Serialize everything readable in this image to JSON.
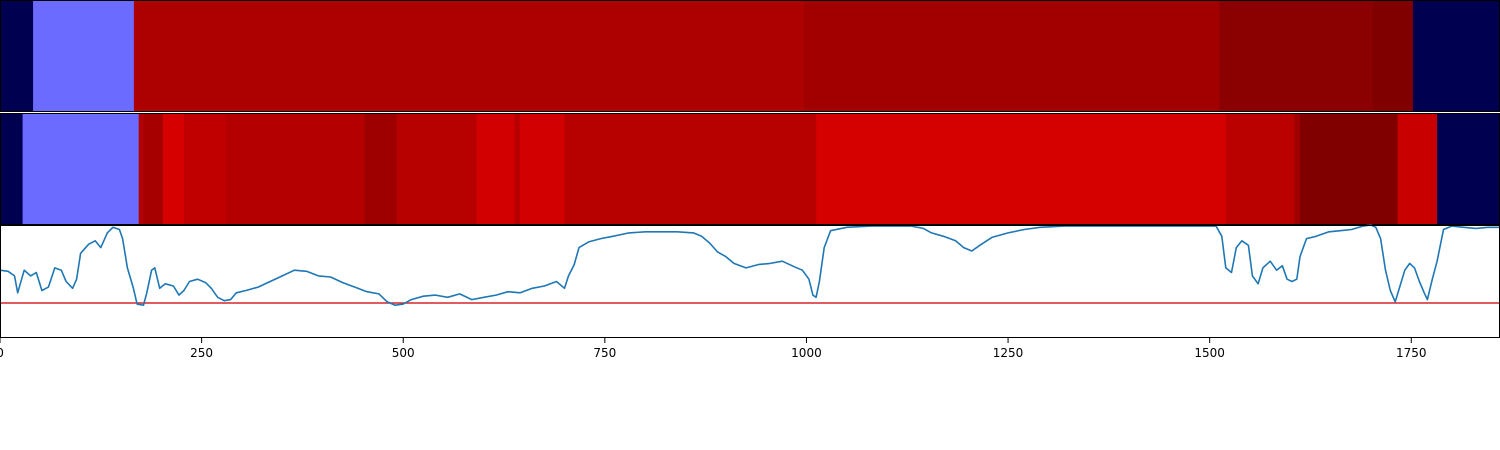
{
  "chart_data": [
    {
      "type": "heatmap",
      "xlim": [
        0,
        1860
      ],
      "segments": [
        {
          "start": 0,
          "end": 41,
          "color": "#000050"
        },
        {
          "start": 41,
          "end": 166,
          "color": "#6b6bff"
        },
        {
          "start": 166,
          "end": 997,
          "color": "#ad0000"
        },
        {
          "start": 997,
          "end": 1512,
          "color": "#a20000"
        },
        {
          "start": 1512,
          "end": 1702,
          "color": "#8b0000"
        },
        {
          "start": 1702,
          "end": 1752,
          "color": "#800000"
        },
        {
          "start": 1752,
          "end": 1860,
          "color": "#000050"
        }
      ]
    },
    {
      "type": "heatmap",
      "xlim": [
        0,
        1860
      ],
      "segments": [
        {
          "start": 0,
          "end": 28,
          "color": "#000050"
        },
        {
          "start": 28,
          "end": 172,
          "color": "#6b6bff"
        },
        {
          "start": 172,
          "end": 178,
          "color": "#b30000"
        },
        {
          "start": 178,
          "end": 202,
          "color": "#a60000"
        },
        {
          "start": 202,
          "end": 228,
          "color": "#d60000"
        },
        {
          "start": 228,
          "end": 280,
          "color": "#c00000"
        },
        {
          "start": 280,
          "end": 452,
          "color": "#b50000"
        },
        {
          "start": 452,
          "end": 492,
          "color": "#9e0000"
        },
        {
          "start": 492,
          "end": 591,
          "color": "#b70000"
        },
        {
          "start": 591,
          "end": 638,
          "color": "#d20000"
        },
        {
          "start": 638,
          "end": 645,
          "color": "#b70000"
        },
        {
          "start": 645,
          "end": 700,
          "color": "#d30000"
        },
        {
          "start": 700,
          "end": 1012,
          "color": "#b70000"
        },
        {
          "start": 1012,
          "end": 1520,
          "color": "#d50000"
        },
        {
          "start": 1520,
          "end": 1605,
          "color": "#bb0000"
        },
        {
          "start": 1605,
          "end": 1612,
          "color": "#a00000"
        },
        {
          "start": 1612,
          "end": 1733,
          "color": "#800000"
        },
        {
          "start": 1733,
          "end": 1782,
          "color": "#c80000"
        },
        {
          "start": 1782,
          "end": 1860,
          "color": "#000050"
        }
      ]
    },
    {
      "type": "line",
      "xlim": [
        0,
        1860
      ],
      "ylim": [
        0,
        1
      ],
      "x_ticks": [
        0,
        250,
        500,
        750,
        1000,
        1250,
        1500,
        1750
      ],
      "threshold": 0.31,
      "threshold_color": "#d62728",
      "line_color": "#1f77b4",
      "points": [
        [
          0,
          0.6
        ],
        [
          10,
          0.59
        ],
        [
          18,
          0.55
        ],
        [
          22,
          0.4
        ],
        [
          30,
          0.6
        ],
        [
          38,
          0.55
        ],
        [
          45,
          0.58
        ],
        [
          52,
          0.42
        ],
        [
          60,
          0.45
        ],
        [
          68,
          0.62
        ],
        [
          76,
          0.6
        ],
        [
          82,
          0.5
        ],
        [
          90,
          0.44
        ],
        [
          95,
          0.52
        ],
        [
          100,
          0.75
        ],
        [
          110,
          0.83
        ],
        [
          118,
          0.86
        ],
        [
          125,
          0.8
        ],
        [
          133,
          0.93
        ],
        [
          140,
          0.98
        ],
        [
          148,
          0.96
        ],
        [
          152,
          0.88
        ],
        [
          158,
          0.62
        ],
        [
          165,
          0.45
        ],
        [
          170,
          0.3
        ],
        [
          178,
          0.29
        ],
        [
          182,
          0.4
        ],
        [
          188,
          0.6
        ],
        [
          192,
          0.62
        ],
        [
          198,
          0.44
        ],
        [
          205,
          0.48
        ],
        [
          215,
          0.46
        ],
        [
          222,
          0.38
        ],
        [
          228,
          0.42
        ],
        [
          235,
          0.5
        ],
        [
          245,
          0.52
        ],
        [
          255,
          0.49
        ],
        [
          262,
          0.44
        ],
        [
          270,
          0.36
        ],
        [
          278,
          0.33
        ],
        [
          286,
          0.34
        ],
        [
          293,
          0.4
        ],
        [
          305,
          0.42
        ],
        [
          320,
          0.45
        ],
        [
          335,
          0.5
        ],
        [
          350,
          0.55
        ],
        [
          365,
          0.6
        ],
        [
          380,
          0.59
        ],
        [
          395,
          0.55
        ],
        [
          410,
          0.54
        ],
        [
          425,
          0.49
        ],
        [
          440,
          0.45
        ],
        [
          455,
          0.41
        ],
        [
          470,
          0.39
        ],
        [
          480,
          0.32
        ],
        [
          490,
          0.29
        ],
        [
          500,
          0.3
        ],
        [
          510,
          0.34
        ],
        [
          525,
          0.37
        ],
        [
          540,
          0.38
        ],
        [
          555,
          0.36
        ],
        [
          570,
          0.39
        ],
        [
          585,
          0.34
        ],
        [
          600,
          0.36
        ],
        [
          615,
          0.38
        ],
        [
          630,
          0.41
        ],
        [
          645,
          0.4
        ],
        [
          660,
          0.44
        ],
        [
          675,
          0.46
        ],
        [
          690,
          0.5
        ],
        [
          700,
          0.44
        ],
        [
          705,
          0.55
        ],
        [
          712,
          0.65
        ],
        [
          718,
          0.8
        ],
        [
          730,
          0.85
        ],
        [
          745,
          0.88
        ],
        [
          760,
          0.9
        ],
        [
          780,
          0.93
        ],
        [
          800,
          0.94
        ],
        [
          820,
          0.94
        ],
        [
          840,
          0.94
        ],
        [
          860,
          0.93
        ],
        [
          870,
          0.9
        ],
        [
          880,
          0.84
        ],
        [
          890,
          0.76
        ],
        [
          900,
          0.72
        ],
        [
          910,
          0.66
        ],
        [
          925,
          0.62
        ],
        [
          940,
          0.65
        ],
        [
          955,
          0.66
        ],
        [
          970,
          0.68
        ],
        [
          985,
          0.63
        ],
        [
          995,
          0.6
        ],
        [
          1003,
          0.52
        ],
        [
          1008,
          0.38
        ],
        [
          1012,
          0.36
        ],
        [
          1016,
          0.5
        ],
        [
          1022,
          0.8
        ],
        [
          1030,
          0.95
        ],
        [
          1050,
          0.98
        ],
        [
          1080,
          0.99
        ],
        [
          1110,
          0.99
        ],
        [
          1130,
          0.99
        ],
        [
          1145,
          0.97
        ],
        [
          1155,
          0.93
        ],
        [
          1170,
          0.9
        ],
        [
          1185,
          0.86
        ],
        [
          1195,
          0.8
        ],
        [
          1205,
          0.77
        ],
        [
          1215,
          0.82
        ],
        [
          1230,
          0.89
        ],
        [
          1250,
          0.93
        ],
        [
          1270,
          0.96
        ],
        [
          1290,
          0.98
        ],
        [
          1320,
          0.99
        ],
        [
          1360,
          0.99
        ],
        [
          1400,
          0.99
        ],
        [
          1440,
          0.99
        ],
        [
          1480,
          0.99
        ],
        [
          1508,
          0.99
        ],
        [
          1515,
          0.9
        ],
        [
          1520,
          0.62
        ],
        [
          1527,
          0.58
        ],
        [
          1533,
          0.8
        ],
        [
          1540,
          0.86
        ],
        [
          1548,
          0.82
        ],
        [
          1553,
          0.55
        ],
        [
          1560,
          0.48
        ],
        [
          1566,
          0.62
        ],
        [
          1575,
          0.68
        ],
        [
          1583,
          0.6
        ],
        [
          1590,
          0.64
        ],
        [
          1596,
          0.52
        ],
        [
          1602,
          0.5
        ],
        [
          1608,
          0.52
        ],
        [
          1612,
          0.72
        ],
        [
          1620,
          0.88
        ],
        [
          1632,
          0.9
        ],
        [
          1648,
          0.94
        ],
        [
          1662,
          0.95
        ],
        [
          1676,
          0.96
        ],
        [
          1690,
          0.99
        ],
        [
          1700,
          1.0
        ],
        [
          1706,
          0.98
        ],
        [
          1712,
          0.88
        ],
        [
          1718,
          0.6
        ],
        [
          1724,
          0.42
        ],
        [
          1730,
          0.32
        ],
        [
          1736,
          0.46
        ],
        [
          1742,
          0.6
        ],
        [
          1748,
          0.66
        ],
        [
          1754,
          0.62
        ],
        [
          1760,
          0.5
        ],
        [
          1766,
          0.4
        ],
        [
          1770,
          0.34
        ],
        [
          1776,
          0.52
        ],
        [
          1782,
          0.68
        ],
        [
          1790,
          0.96
        ],
        [
          1800,
          0.99
        ],
        [
          1815,
          0.98
        ],
        [
          1830,
          0.97
        ],
        [
          1845,
          0.98
        ],
        [
          1860,
          0.98
        ]
      ]
    }
  ]
}
